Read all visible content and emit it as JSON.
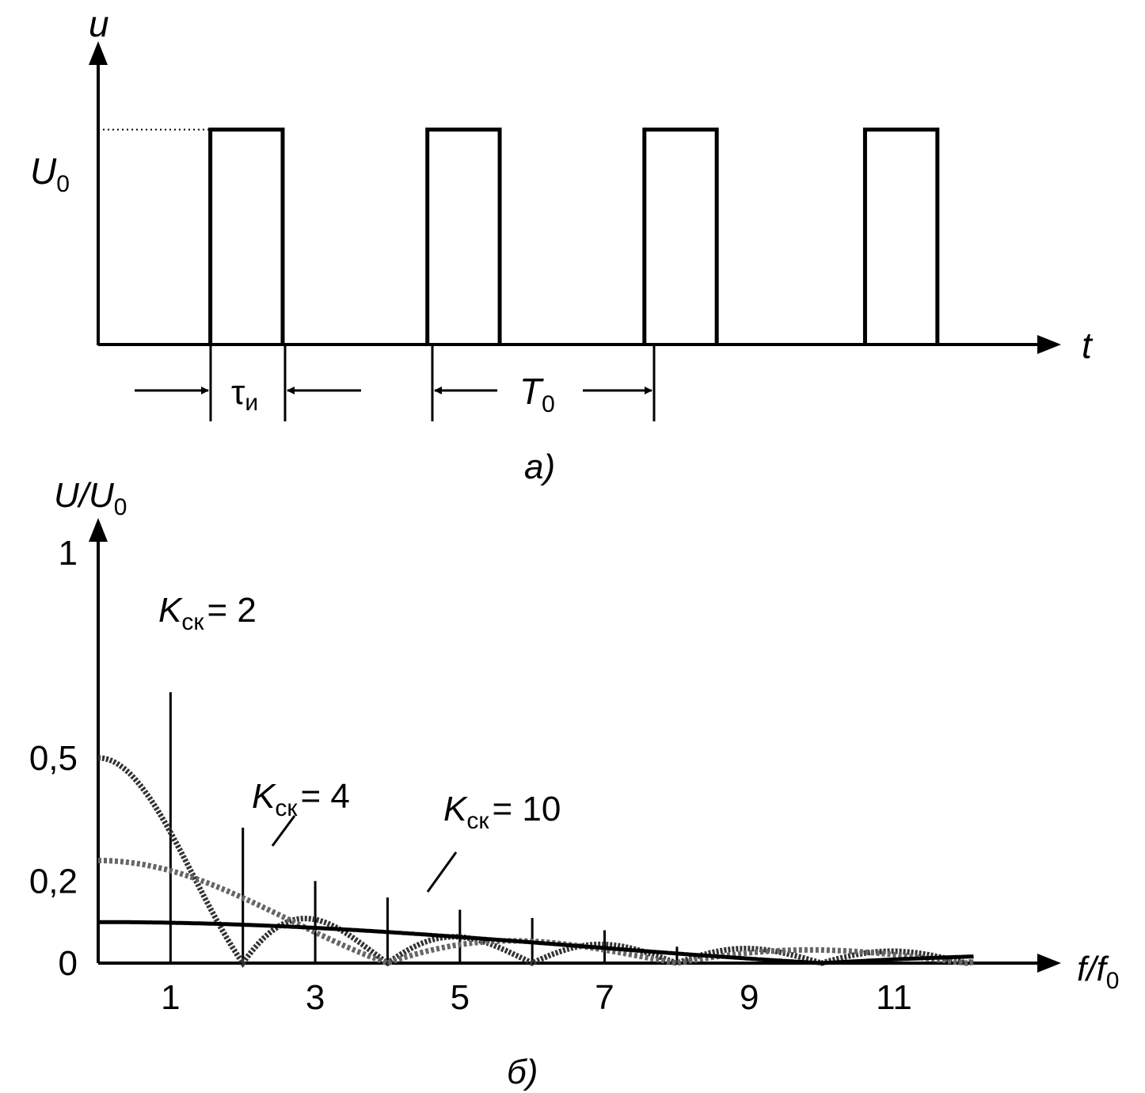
{
  "chart_data": [
    {
      "type": "line",
      "panel_label": "а)",
      "ylabel": "u",
      "xlabel": "t",
      "level_label_main": "U",
      "level_label_sub": "0",
      "level": 1,
      "pulse_width_label_main": "τ",
      "pulse_width_label_sub": "и",
      "period_label_main": "T",
      "period_label_sub": "0",
      "pulses": [
        {
          "start": 1.55,
          "end": 2.55
        },
        {
          "start": 4.55,
          "end": 5.55
        },
        {
          "start": 7.55,
          "end": 8.55
        },
        {
          "start": 10.6,
          "end": 11.6
        }
      ],
      "xlim": [
        0,
        13.2
      ],
      "ylim": [
        0,
        1.4
      ]
    },
    {
      "type": "line",
      "panel_label": "б)",
      "ylabel_main": "U/U",
      "ylabel_sub": "0",
      "xlabel_main": "f/f",
      "xlabel_sub": "0",
      "x_ticks": [
        "1",
        "3",
        "5",
        "7",
        "9",
        "11"
      ],
      "y_ticks": [
        {
          "value": 0,
          "label": "0"
        },
        {
          "value": 0.2,
          "label": "0,2"
        },
        {
          "value": 0.5,
          "label": "0,5"
        },
        {
          "value": 1,
          "label": "1"
        }
      ],
      "xlim": [
        0,
        13.2
      ],
      "ylim": [
        0,
        1.1
      ],
      "series": [
        {
          "name_main": "K",
          "name_sub": "ск",
          "name_value": "= 2",
          "k": 2
        },
        {
          "name_main": "K",
          "name_sub": "ск",
          "name_value": "= 4",
          "k": 4
        },
        {
          "name_main": "K",
          "name_sub": "ск",
          "name_value": "= 10",
          "k": 10
        }
      ],
      "harmonics": [
        {
          "n": 1,
          "value": 0.66
        },
        {
          "n": 2,
          "value": 0.33
        },
        {
          "n": 3,
          "value": 0.2
        },
        {
          "n": 4,
          "value": 0.16
        },
        {
          "n": 5,
          "value": 0.13
        },
        {
          "n": 6,
          "value": 0.11
        },
        {
          "n": 7,
          "value": 0.08
        },
        {
          "n": 8,
          "value": 0.04
        }
      ]
    }
  ]
}
